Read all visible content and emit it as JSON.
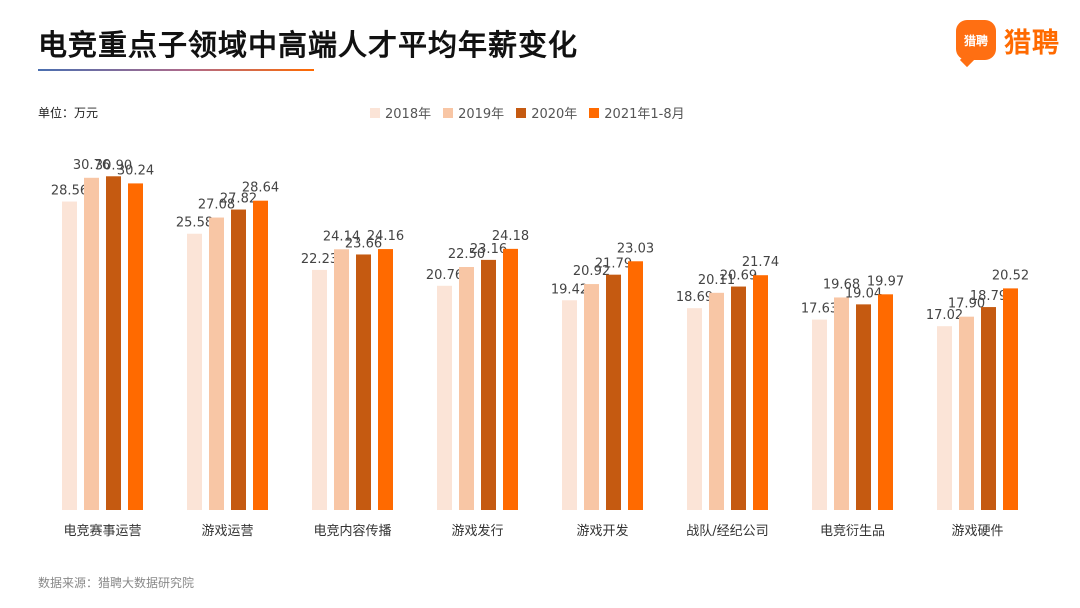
{
  "header": {
    "title": "电竞重点子领域中高端人才平均年薪变化",
    "logo_badge_text": "猎聘",
    "logo_text": "猎聘"
  },
  "unit_label": "单位：万元",
  "source": "数据来源：猎聘大数据研究院",
  "colors": {
    "accent": "#ff6a00",
    "series": [
      "#fbe4d7",
      "#f8c6a5",
      "#c55a11",
      "#ff6a00"
    ]
  },
  "chart_data": {
    "type": "bar",
    "categories": [
      "电竞赛事运营",
      "游戏运营",
      "电竞内容传播",
      "游戏发行",
      "游戏开发",
      "战队/经纪公司",
      "电竞衍生品",
      "游戏硬件"
    ],
    "series": [
      {
        "name": "2018年",
        "values": [
          28.56,
          25.58,
          22.23,
          20.76,
          19.42,
          18.69,
          17.63,
          17.02
        ]
      },
      {
        "name": "2019年",
        "values": [
          30.76,
          27.08,
          24.14,
          22.5,
          20.92,
          20.11,
          19.68,
          17.9
        ]
      },
      {
        "name": "2020年",
        "values": [
          30.9,
          27.82,
          23.66,
          23.16,
          21.79,
          20.69,
          19.04,
          18.79
        ]
      },
      {
        "name": "2021年1-8月",
        "values": [
          30.24,
          28.64,
          24.16,
          24.18,
          23.03,
          21.74,
          19.97,
          20.52
        ]
      }
    ],
    "ylim": [
      0,
      34
    ],
    "grid": false,
    "legend": "top-center",
    "ylabel": ""
  }
}
